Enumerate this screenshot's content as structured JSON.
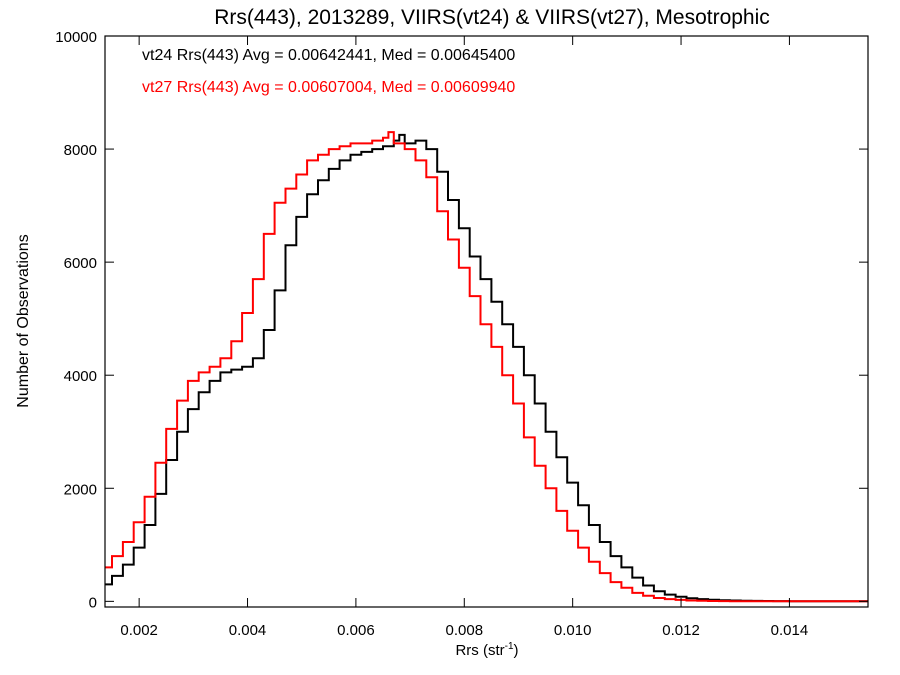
{
  "chart_data": {
    "type": "line",
    "title": "Rrs(443), 2013289, VIIRS(vt24) & VIIRS(vt27), Mesotrophic",
    "xlabel": "Rrs (str",
    "xlabel_sup": "-1",
    "xlabel_close": ")",
    "ylabel": "Number of Observations",
    "xlim": [
      0.00137,
      0.01545
    ],
    "ylim": [
      -100,
      10000
    ],
    "x_ticks": [
      0.002,
      0.004,
      0.006,
      0.008,
      0.01,
      0.012,
      0.014
    ],
    "x_tick_labels": [
      "0.002",
      "0.004",
      "0.006",
      "0.008",
      "0.010",
      "0.012",
      "0.014"
    ],
    "y_ticks": [
      0,
      2000,
      4000,
      6000,
      8000,
      10000
    ],
    "y_tick_labels": [
      "0",
      "2000",
      "4000",
      "6000",
      "8000",
      "10000"
    ],
    "annotations": [
      {
        "text": "vt24 Rrs(443) Avg = 0.00642441, Med = 0.00645400",
        "color": "#000000"
      },
      {
        "text": "vt27 Rrs(443) Avg = 0.00607004, Med = 0.00609940",
        "color": "#ff0000"
      }
    ],
    "series": [
      {
        "color": "#000000",
        "x": [
          0.00137,
          0.0015,
          0.0017,
          0.0019,
          0.0021,
          0.0023,
          0.0025,
          0.0027,
          0.0029,
          0.0031,
          0.0033,
          0.0035,
          0.0037,
          0.0039,
          0.0041,
          0.0043,
          0.0045,
          0.0047,
          0.0049,
          0.0051,
          0.0053,
          0.0055,
          0.0057,
          0.0059,
          0.0061,
          0.0063,
          0.0065,
          0.0067,
          0.0068,
          0.0069,
          0.0071,
          0.0073,
          0.0075,
          0.0077,
          0.0079,
          0.0081,
          0.0083,
          0.0085,
          0.0087,
          0.0089,
          0.0091,
          0.0093,
          0.0095,
          0.0097,
          0.0099,
          0.0101,
          0.0103,
          0.0105,
          0.0107,
          0.0109,
          0.0111,
          0.0113,
          0.0115,
          0.0117,
          0.0119,
          0.0121,
          0.0123,
          0.0125,
          0.0127,
          0.0129,
          0.0131,
          0.0133,
          0.0135,
          0.0137,
          0.014,
          0.0145,
          0.015,
          0.01545
        ],
        "y": [
          300,
          450,
          650,
          950,
          1350,
          1900,
          2500,
          3000,
          3400,
          3700,
          3900,
          4050,
          4100,
          4150,
          4300,
          4800,
          5500,
          6300,
          6800,
          7200,
          7450,
          7650,
          7800,
          7900,
          7950,
          8000,
          8050,
          8150,
          8250,
          8100,
          8150,
          8000,
          7600,
          7100,
          6600,
          6100,
          5700,
          5300,
          4900,
          4500,
          4000,
          3500,
          3000,
          2550,
          2100,
          1700,
          1350,
          1050,
          800,
          600,
          420,
          280,
          180,
          120,
          80,
          55,
          40,
          30,
          20,
          15,
          10,
          8,
          6,
          4,
          3,
          2,
          1,
          0
        ]
      },
      {
        "color": "#ff0000",
        "x": [
          0.00137,
          0.0015,
          0.0017,
          0.0019,
          0.0021,
          0.0023,
          0.0025,
          0.0027,
          0.0029,
          0.0031,
          0.0033,
          0.0035,
          0.0037,
          0.0039,
          0.0041,
          0.0043,
          0.0045,
          0.0047,
          0.0049,
          0.0051,
          0.0053,
          0.0055,
          0.0057,
          0.0059,
          0.0061,
          0.0063,
          0.0065,
          0.0066,
          0.0067,
          0.0069,
          0.0071,
          0.0073,
          0.0075,
          0.0077,
          0.0079,
          0.0081,
          0.0083,
          0.0085,
          0.0087,
          0.0089,
          0.0091,
          0.0093,
          0.0095,
          0.0097,
          0.0099,
          0.0101,
          0.0103,
          0.0105,
          0.0107,
          0.0109,
          0.0111,
          0.0113,
          0.0115,
          0.0117,
          0.0119,
          0.0121,
          0.0123,
          0.0125,
          0.0127,
          0.0129,
          0.0131,
          0.0133,
          0.0135,
          0.014,
          0.0145,
          0.015,
          0.01545
        ],
        "y": [
          600,
          800,
          1050,
          1400,
          1850,
          2450,
          3050,
          3550,
          3900,
          4050,
          4150,
          4300,
          4600,
          5100,
          5700,
          6500,
          7050,
          7300,
          7550,
          7800,
          7900,
          8000,
          8050,
          8100,
          8100,
          8150,
          8200,
          8300,
          8100,
          8000,
          7800,
          7500,
          6900,
          6400,
          5900,
          5400,
          4900,
          4500,
          4000,
          3500,
          2900,
          2400,
          2000,
          1600,
          1250,
          950,
          700,
          500,
          340,
          240,
          150,
          100,
          60,
          40,
          25,
          15,
          10,
          6,
          4,
          3,
          2,
          1,
          1,
          0,
          0,
          0,
          0
        ]
      }
    ]
  }
}
